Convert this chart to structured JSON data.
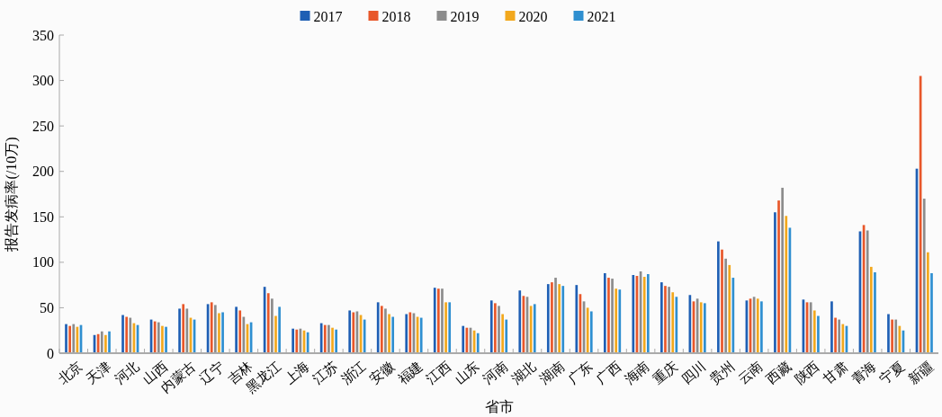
{
  "chart_data": {
    "type": "bar",
    "xlabel": "省市",
    "ylabel": "报告发病率(/10万)",
    "categories": [
      "北京",
      "天津",
      "河北",
      "山西",
      "内蒙古",
      "辽宁",
      "吉林",
      "黑龙江",
      "上海",
      "江苏",
      "浙江",
      "安徽",
      "福建",
      "江西",
      "山东",
      "河南",
      "湖北",
      "湖南",
      "广东",
      "广西",
      "海南",
      "重庆",
      "四川",
      "贵州",
      "云南",
      "西藏",
      "陕西",
      "甘肃",
      "青海",
      "宁夏",
      "新疆"
    ],
    "series": [
      {
        "name": "2017",
        "color": "#1f5fb4",
        "values": [
          32,
          20,
          42,
          37,
          49,
          54,
          51,
          73,
          27,
          33,
          47,
          56,
          43,
          72,
          30,
          58,
          69,
          76,
          75,
          88,
          86,
          78,
          64,
          123,
          58,
          155,
          59,
          57,
          134,
          43,
          203
        ]
      },
      {
        "name": "2018",
        "color": "#e8572a",
        "values": [
          30,
          21,
          40,
          35,
          54,
          56,
          47,
          66,
          26,
          31,
          45,
          52,
          45,
          71,
          28,
          55,
          63,
          78,
          65,
          83,
          85,
          74,
          57,
          114,
          60,
          168,
          56,
          39,
          141,
          37,
          305
        ]
      },
      {
        "name": "2019",
        "color": "#8c8c8c",
        "values": [
          32,
          24,
          39,
          34,
          49,
          53,
          40,
          60,
          27,
          31,
          46,
          49,
          44,
          71,
          28,
          52,
          62,
          83,
          57,
          82,
          90,
          73,
          60,
          104,
          62,
          182,
          56,
          37,
          135,
          37,
          170
        ]
      },
      {
        "name": "2020",
        "color": "#f2a81d",
        "values": [
          29,
          20,
          33,
          30,
          39,
          44,
          32,
          41,
          25,
          28,
          42,
          43,
          40,
          56,
          25,
          43,
          52,
          76,
          50,
          71,
          84,
          67,
          56,
          97,
          60,
          151,
          47,
          32,
          95,
          30,
          111
        ]
      },
      {
        "name": "2021",
        "color": "#2f8fd0",
        "values": [
          31,
          24,
          31,
          29,
          37,
          45,
          34,
          51,
          23,
          26,
          37,
          40,
          39,
          56,
          22,
          37,
          54,
          74,
          46,
          70,
          87,
          62,
          55,
          83,
          57,
          138,
          41,
          30,
          89,
          25,
          88
        ]
      }
    ],
    "ylim": [
      0,
      350
    ],
    "yticks": [
      0,
      50,
      100,
      150,
      200,
      250,
      300,
      350
    ],
    "grid": false,
    "legend": "top"
  }
}
